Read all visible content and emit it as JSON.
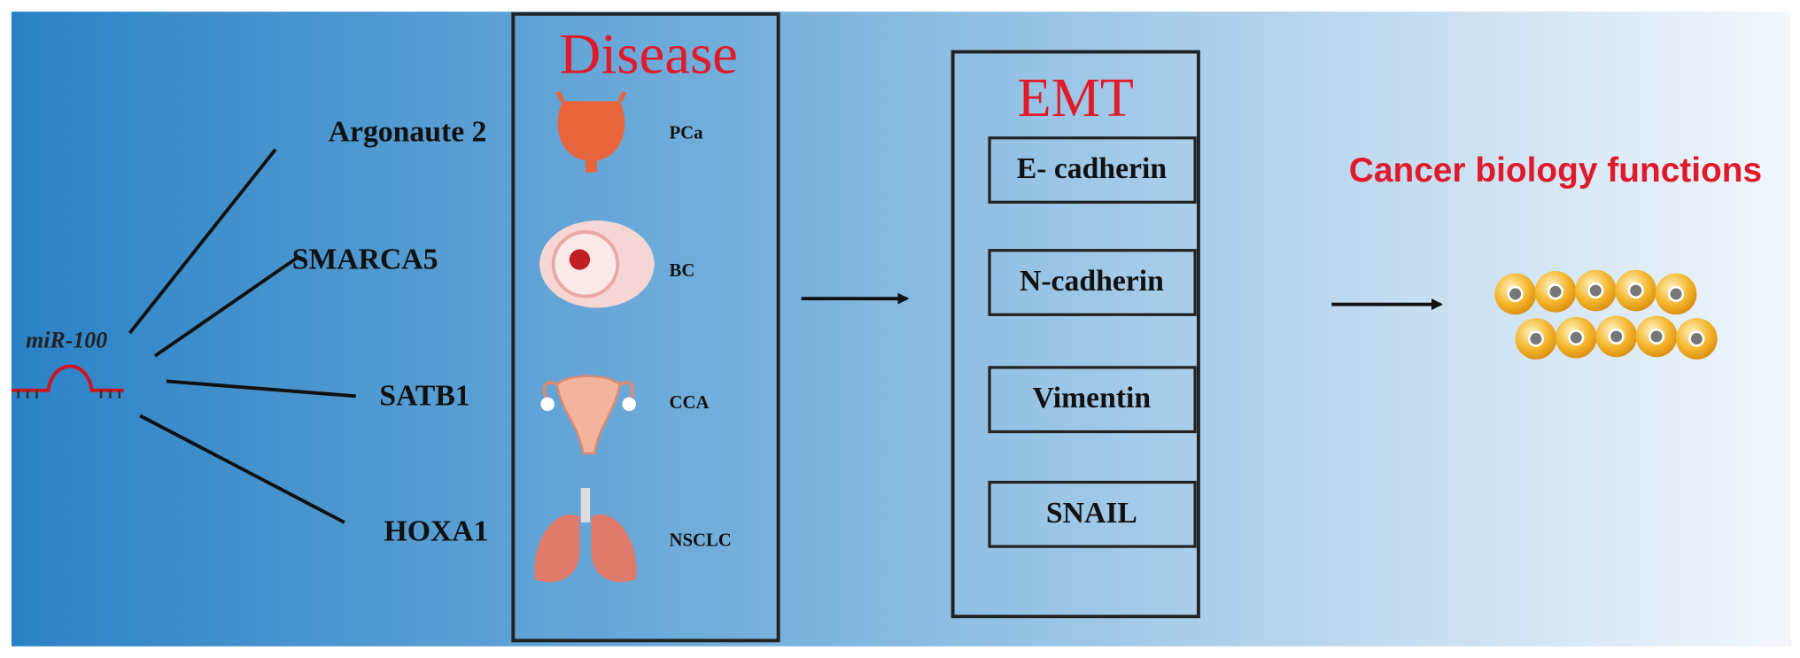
{
  "mirna": "miR-100",
  "targets": [
    "Argonaute 2",
    "SMARCA5",
    "SATB1",
    "HOXA1"
  ],
  "disease": {
    "title": "Disease",
    "items": [
      "PCa",
      "BC",
      "CCA",
      "NSCLC"
    ]
  },
  "emt": {
    "title": "EMT",
    "markers": [
      "E- cadherin",
      "N-cadherin",
      "Vimentin",
      "SNAIL"
    ]
  },
  "outcome": "Cancer biology functions"
}
